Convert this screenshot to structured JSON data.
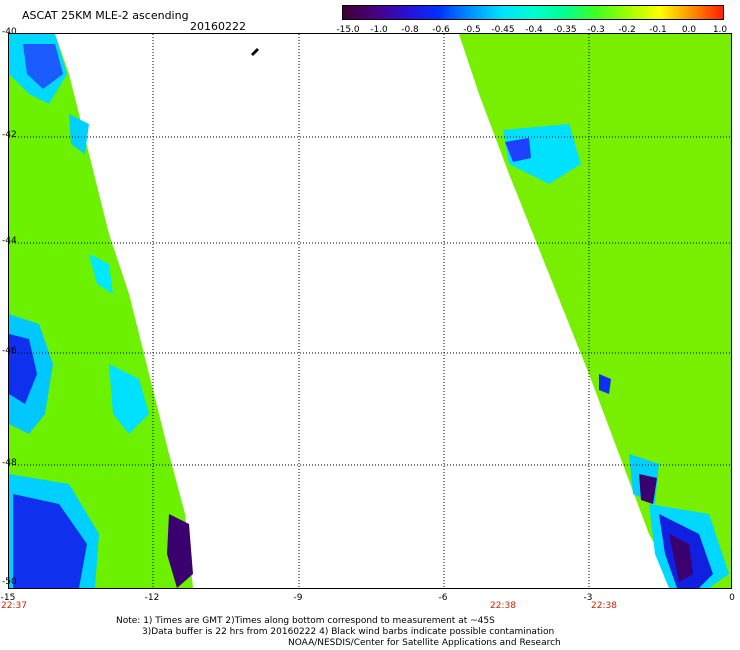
{
  "header": {
    "title": "ASCAT 25KM MLE-2 ascending",
    "date": "20160222"
  },
  "colorbar": {
    "labels": [
      "-15.0",
      "-1.0",
      "-0.8",
      "-0.6",
      "-0.5",
      "-0.45",
      "-0.4",
      "-0.35",
      "-0.3",
      "-0.2",
      "-0.1",
      "0.0",
      "1.0"
    ],
    "colors": [
      "#3a0030",
      "#4a0080",
      "#2a10d0",
      "#0030ff",
      "#0090ff",
      "#00e0ff",
      "#00ffd0",
      "#00ff90",
      "#40ff20",
      "#a0ff00",
      "#ffff00",
      "#ff9000",
      "#ff2000"
    ]
  },
  "map": {
    "lat_ticks": [
      "-40",
      "-42",
      "-44",
      "-46",
      "-48",
      "-50"
    ],
    "lon_ticks": [
      "-15",
      "-12",
      "-9",
      "-6",
      "-3",
      "0"
    ],
    "time_labels": [
      "22:37",
      "22:38",
      "22:38"
    ],
    "colors": {
      "background": "#ffffff",
      "grid": "#000000",
      "time_label": "#cc2200"
    }
  },
  "footnotes": {
    "line1": "Note: 1) Times are GMT 2)Times along bottom correspond to measurement at ~45S",
    "line2": "3)Data buffer is 22 hrs from 20160222 4) Black wind barbs indicate possible contamination",
    "line3": "NOAA/NESDIS/Center for Satellite Applications and Research"
  }
}
